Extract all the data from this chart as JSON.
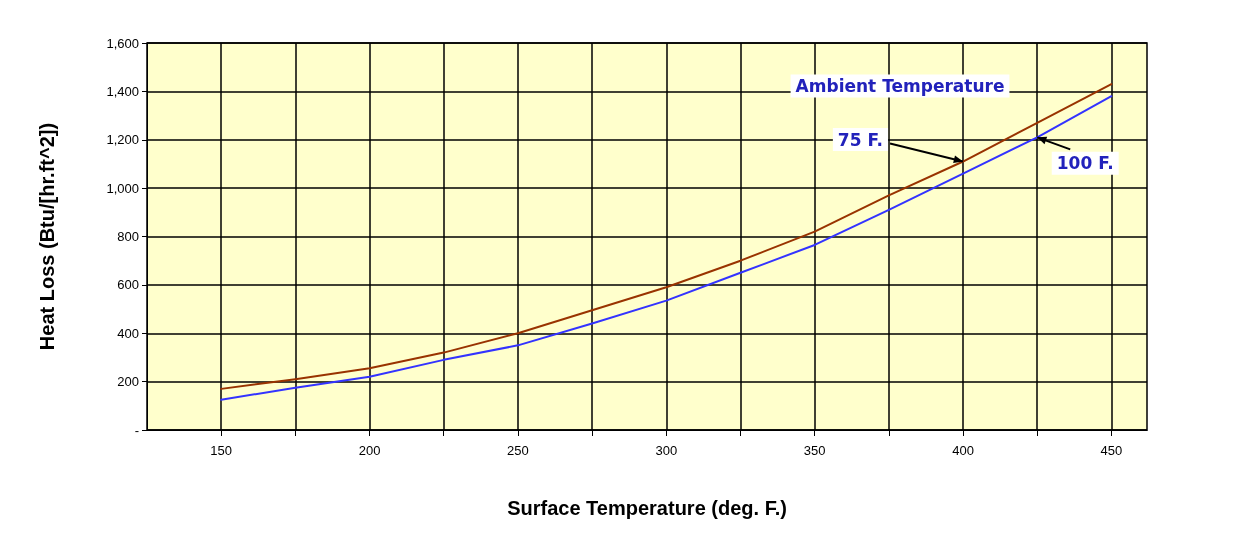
{
  "chart_data": {
    "type": "line",
    "xlabel": "Surface Temperature (deg. F.)",
    "ylabel": "Heat Loss (Btu/[hr.ft^2])",
    "x": [
      150,
      175,
      200,
      225,
      250,
      275,
      300,
      325,
      350,
      375,
      400,
      425,
      450
    ],
    "series": [
      {
        "name": "75 F.",
        "color": "#993300",
        "values": [
          170,
          210,
          255,
          320,
          400,
          495,
          590,
          700,
          820,
          970,
          1110,
          1270,
          1430
        ]
      },
      {
        "name": "100 F.",
        "color": "#3333ff",
        "values": [
          125,
          175,
          220,
          290,
          350,
          440,
          535,
          650,
          765,
          910,
          1060,
          1210,
          1380
        ]
      }
    ],
    "annotations": [
      "Ambient Temperature"
    ],
    "xlim": [
      125,
      462
    ],
    "xticks": [
      150,
      {
        "value": 175,
        "label": null
      },
      200,
      {
        "value": 225,
        "label": null
      },
      250,
      {
        "value": 275,
        "label": null
      },
      300,
      {
        "value": 325,
        "label": null
      },
      350,
      {
        "value": 375,
        "label": null
      },
      400,
      {
        "value": 425,
        "label": null
      },
      450
    ],
    "ylim": [
      0,
      1600
    ],
    "yticks": [
      {
        "value": 0,
        "label": "-"
      },
      200,
      400,
      600,
      800,
      {
        "value": 1000,
        "label": "1,000"
      },
      {
        "value": 1200,
        "label": "1,200"
      },
      {
        "value": 1400,
        "label": "1,400"
      },
      {
        "value": 1600,
        "label": "1,600"
      }
    ],
    "grid": true,
    "marker": "none"
  }
}
